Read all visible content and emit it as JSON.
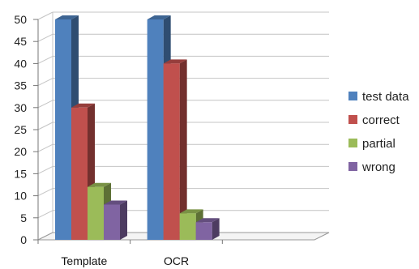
{
  "chart_data": {
    "type": "bar",
    "categories": [
      "Template",
      "OCR"
    ],
    "series": [
      {
        "name": "test data",
        "values": [
          50,
          50
        ],
        "color": "#4F81BD"
      },
      {
        "name": "correct",
        "values": [
          30,
          40
        ],
        "color": "#C0504D"
      },
      {
        "name": "partial",
        "values": [
          12,
          6
        ],
        "color": "#9BBB59"
      },
      {
        "name": "wrong",
        "values": [
          8,
          4
        ],
        "color": "#8064A2"
      }
    ],
    "yticks": [
      0,
      5,
      10,
      15,
      20,
      25,
      30,
      35,
      40,
      45,
      50
    ],
    "ylim": [
      0,
      50
    ],
    "grid": true,
    "legend_position": "right",
    "style": "3d-clustered-column"
  }
}
